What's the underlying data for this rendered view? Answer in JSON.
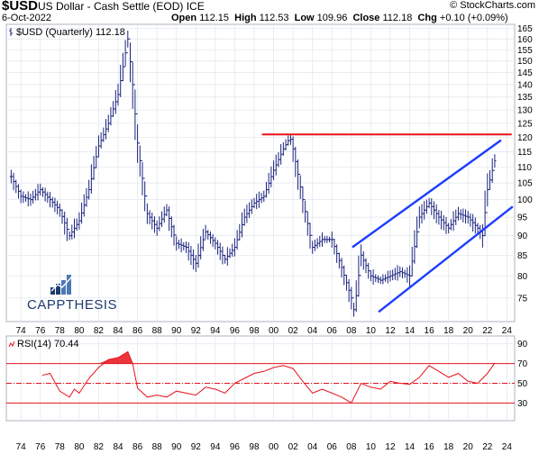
{
  "header": {
    "symbol": "$USD",
    "name": "US Dollar - Cash Settle (EOD) ICE",
    "date": "6-Oct-2022",
    "watermark": "© StockCharts.com",
    "open_label": "Open",
    "open": "112.15",
    "high_label": "High",
    "high": "112.53",
    "low_label": "Low",
    "low": "109.96",
    "close_label": "Close",
    "close": "112.18",
    "chg_label": "Chg",
    "chg": "+0.10 (+0.09%)"
  },
  "logo": {
    "text": "CAPPTHESIS"
  },
  "colors": {
    "price": "#1a237e",
    "channel": "#1e3cff",
    "resistance": "#e8121a",
    "rsi": "#e8121a",
    "grid": "#dfe6ee"
  },
  "chart_data": [
    {
      "type": "bar",
      "panel": "price",
      "legend": "$USD (Quarterly) 112.18",
      "x_tick_labels": [
        "74",
        "76",
        "78",
        "80",
        "82",
        "84",
        "86",
        "88",
        "90",
        "92",
        "94",
        "96",
        "98",
        "00",
        "02",
        "04",
        "06",
        "08",
        "10",
        "12",
        "14",
        "16",
        "18",
        "20",
        "22",
        "24"
      ],
      "y_tick_labels": [
        "165",
        "160",
        "155",
        "150",
        "145",
        "140",
        "135",
        "130",
        "125",
        "120",
        "115",
        "110",
        "105",
        "100",
        "95",
        "90",
        "85",
        "80",
        "75"
      ],
      "ylim": [
        70,
        167
      ],
      "scale": "log",
      "series": [
        {
          "x": [
            1973,
            1974,
            1975,
            1976,
            1977,
            1978,
            1979,
            1980,
            1981,
            1982,
            1983,
            1984,
            1985,
            1985.5,
            1986,
            1987,
            1988,
            1989,
            1990,
            1991,
            1992,
            1993,
            1994,
            1995,
            1996,
            1997,
            1998,
            1999,
            2000,
            2001,
            2001.7,
            2002,
            2003,
            2004,
            2005,
            2006,
            2007,
            2008,
            2008.3,
            2009,
            2010,
            2011,
            2012,
            2013,
            2014,
            2015,
            2016,
            2017,
            2018,
            2019,
            2020,
            2021,
            2021.5,
            2022,
            2022.75
          ],
          "y": [
            107,
            101,
            100,
            103,
            100,
            97,
            90,
            94,
            103,
            117,
            125,
            136,
            160,
            140,
            118,
            96,
            92,
            97,
            88,
            87,
            83,
            91,
            88,
            84,
            87,
            95,
            99,
            101,
            109,
            116,
            120,
            116,
            100,
            87,
            89,
            89,
            82,
            75,
            72,
            85,
            80,
            79,
            80,
            81,
            80,
            95,
            99,
            95,
            92,
            96,
            95,
            92,
            90,
            103,
            112
          ]
        }
      ],
      "annotations": [
        {
          "type": "horizontal-line",
          "value": 121,
          "x_from": 1998.8,
          "x_to": 2024.5,
          "color": "#e8121a"
        },
        {
          "type": "trendline",
          "from": [
            2008.1,
            87
          ],
          "to": [
            2023.4,
            119
          ],
          "color": "#1e3cff"
        },
        {
          "type": "trendline",
          "from": [
            2010.8,
            72
          ],
          "to": [
            2024.6,
            98
          ],
          "color": "#1e3cff"
        }
      ]
    },
    {
      "type": "line",
      "panel": "rsi",
      "legend": "RSI(14) 70.44",
      "y_tick_labels": [
        "90",
        "70",
        "50",
        "30"
      ],
      "ylim": [
        12,
        98
      ],
      "reference_lines": [
        70,
        50,
        30
      ],
      "x_tick_labels": [
        "74",
        "76",
        "78",
        "80",
        "82",
        "84",
        "86",
        "88",
        "90",
        "92",
        "94",
        "96",
        "98",
        "00",
        "02",
        "04",
        "06",
        "08",
        "10",
        "12",
        "14",
        "16",
        "18",
        "20",
        "22",
        "24"
      ],
      "series": [
        {
          "name": "RSI(14)",
          "x": [
            1976.2,
            1977,
            1978,
            1979,
            1979.5,
            1980,
            1981,
            1982,
            1983,
            1984,
            1985,
            1985.5,
            1986,
            1987,
            1988,
            1989,
            1990,
            1991,
            1992,
            1993,
            1994,
            1995,
            1996,
            1997,
            1998,
            1999,
            2000,
            2001,
            2002,
            2003,
            2004,
            2005,
            2006,
            2007,
            2008,
            2009,
            2010,
            2011,
            2012,
            2013,
            2014,
            2015,
            2016,
            2017,
            2018,
            2019,
            2020,
            2021,
            2022,
            2022.75
          ],
          "y": [
            58,
            60,
            42,
            36,
            44,
            40,
            55,
            66,
            74,
            76,
            82,
            70,
            45,
            36,
            38,
            36,
            42,
            40,
            38,
            46,
            44,
            40,
            50,
            55,
            60,
            62,
            66,
            68,
            65,
            52,
            40,
            44,
            40,
            36,
            30,
            50,
            46,
            44,
            52,
            50,
            49,
            56,
            68,
            62,
            56,
            60,
            52,
            50,
            60,
            70.44
          ]
        }
      ]
    }
  ]
}
